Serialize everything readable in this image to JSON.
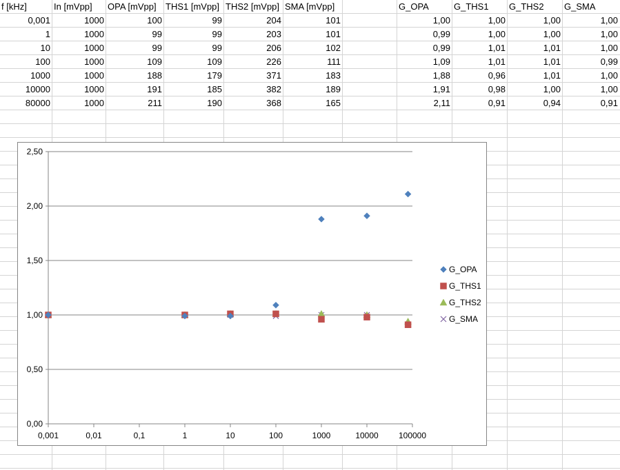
{
  "sheet": {
    "headers": [
      "f [kHz]",
      "In [mVpp]",
      "OPA [mVpp]",
      "THS1 [mVpp]",
      "THS2 [mVpp]",
      "SMA [mVpp]",
      "",
      "G_OPA",
      "G_THS1",
      "G_THS2",
      "G_SMA"
    ],
    "rows": [
      [
        "0,001",
        "1000",
        "100",
        "99",
        "204",
        "101",
        "",
        "1,00",
        "1,00",
        "1,00",
        "1,00"
      ],
      [
        "1",
        "1000",
        "99",
        "99",
        "203",
        "101",
        "",
        "0,99",
        "1,00",
        "1,00",
        "1,00"
      ],
      [
        "10",
        "1000",
        "99",
        "99",
        "206",
        "102",
        "",
        "0,99",
        "1,01",
        "1,01",
        "1,00"
      ],
      [
        "100",
        "1000",
        "109",
        "109",
        "226",
        "111",
        "",
        "1,09",
        "1,01",
        "1,01",
        "0,99"
      ],
      [
        "1000",
        "1000",
        "188",
        "179",
        "371",
        "183",
        "",
        "1,88",
        "0,96",
        "1,01",
        "1,00"
      ],
      [
        "10000",
        "1000",
        "191",
        "185",
        "382",
        "189",
        "",
        "1,91",
        "0,98",
        "1,00",
        "1,00"
      ],
      [
        "80000",
        "1000",
        "211",
        "190",
        "368",
        "165",
        "",
        "2,11",
        "0,91",
        "0,94",
        "0,91"
      ]
    ]
  },
  "chart_data": {
    "type": "scatter",
    "x_scale": "log",
    "x_ticks": [
      "0,001",
      "0,01",
      "0,1",
      "1",
      "10",
      "100",
      "1000",
      "10000",
      "100000"
    ],
    "y_ticks": [
      "0,00",
      "0,50",
      "1,00",
      "1,50",
      "2,00",
      "2,50"
    ],
    "xlim": [
      0.001,
      100000
    ],
    "ylim": [
      0,
      2.5
    ],
    "grid": "horizontal major gridlines",
    "legend_position": "right",
    "x": [
      0.001,
      1,
      10,
      100,
      1000,
      10000,
      80000
    ],
    "series": [
      {
        "name": "G_OPA",
        "marker": "diamond",
        "color": "#4F81BD",
        "values": [
          1.0,
          0.99,
          0.99,
          1.09,
          1.88,
          1.91,
          2.11
        ]
      },
      {
        "name": "G_THS1",
        "marker": "square",
        "color": "#C0504D",
        "values": [
          1.0,
          1.0,
          1.01,
          1.01,
          0.96,
          0.98,
          0.91
        ]
      },
      {
        "name": "G_THS2",
        "marker": "triangle",
        "color": "#9BBB59",
        "values": [
          1.0,
          1.0,
          1.01,
          1.01,
          1.01,
          1.0,
          0.94
        ]
      },
      {
        "name": "G_SMA",
        "marker": "x",
        "color": "#8064A2",
        "values": [
          1.0,
          1.0,
          1.0,
          0.99,
          1.0,
          1.0,
          0.91
        ]
      }
    ]
  }
}
